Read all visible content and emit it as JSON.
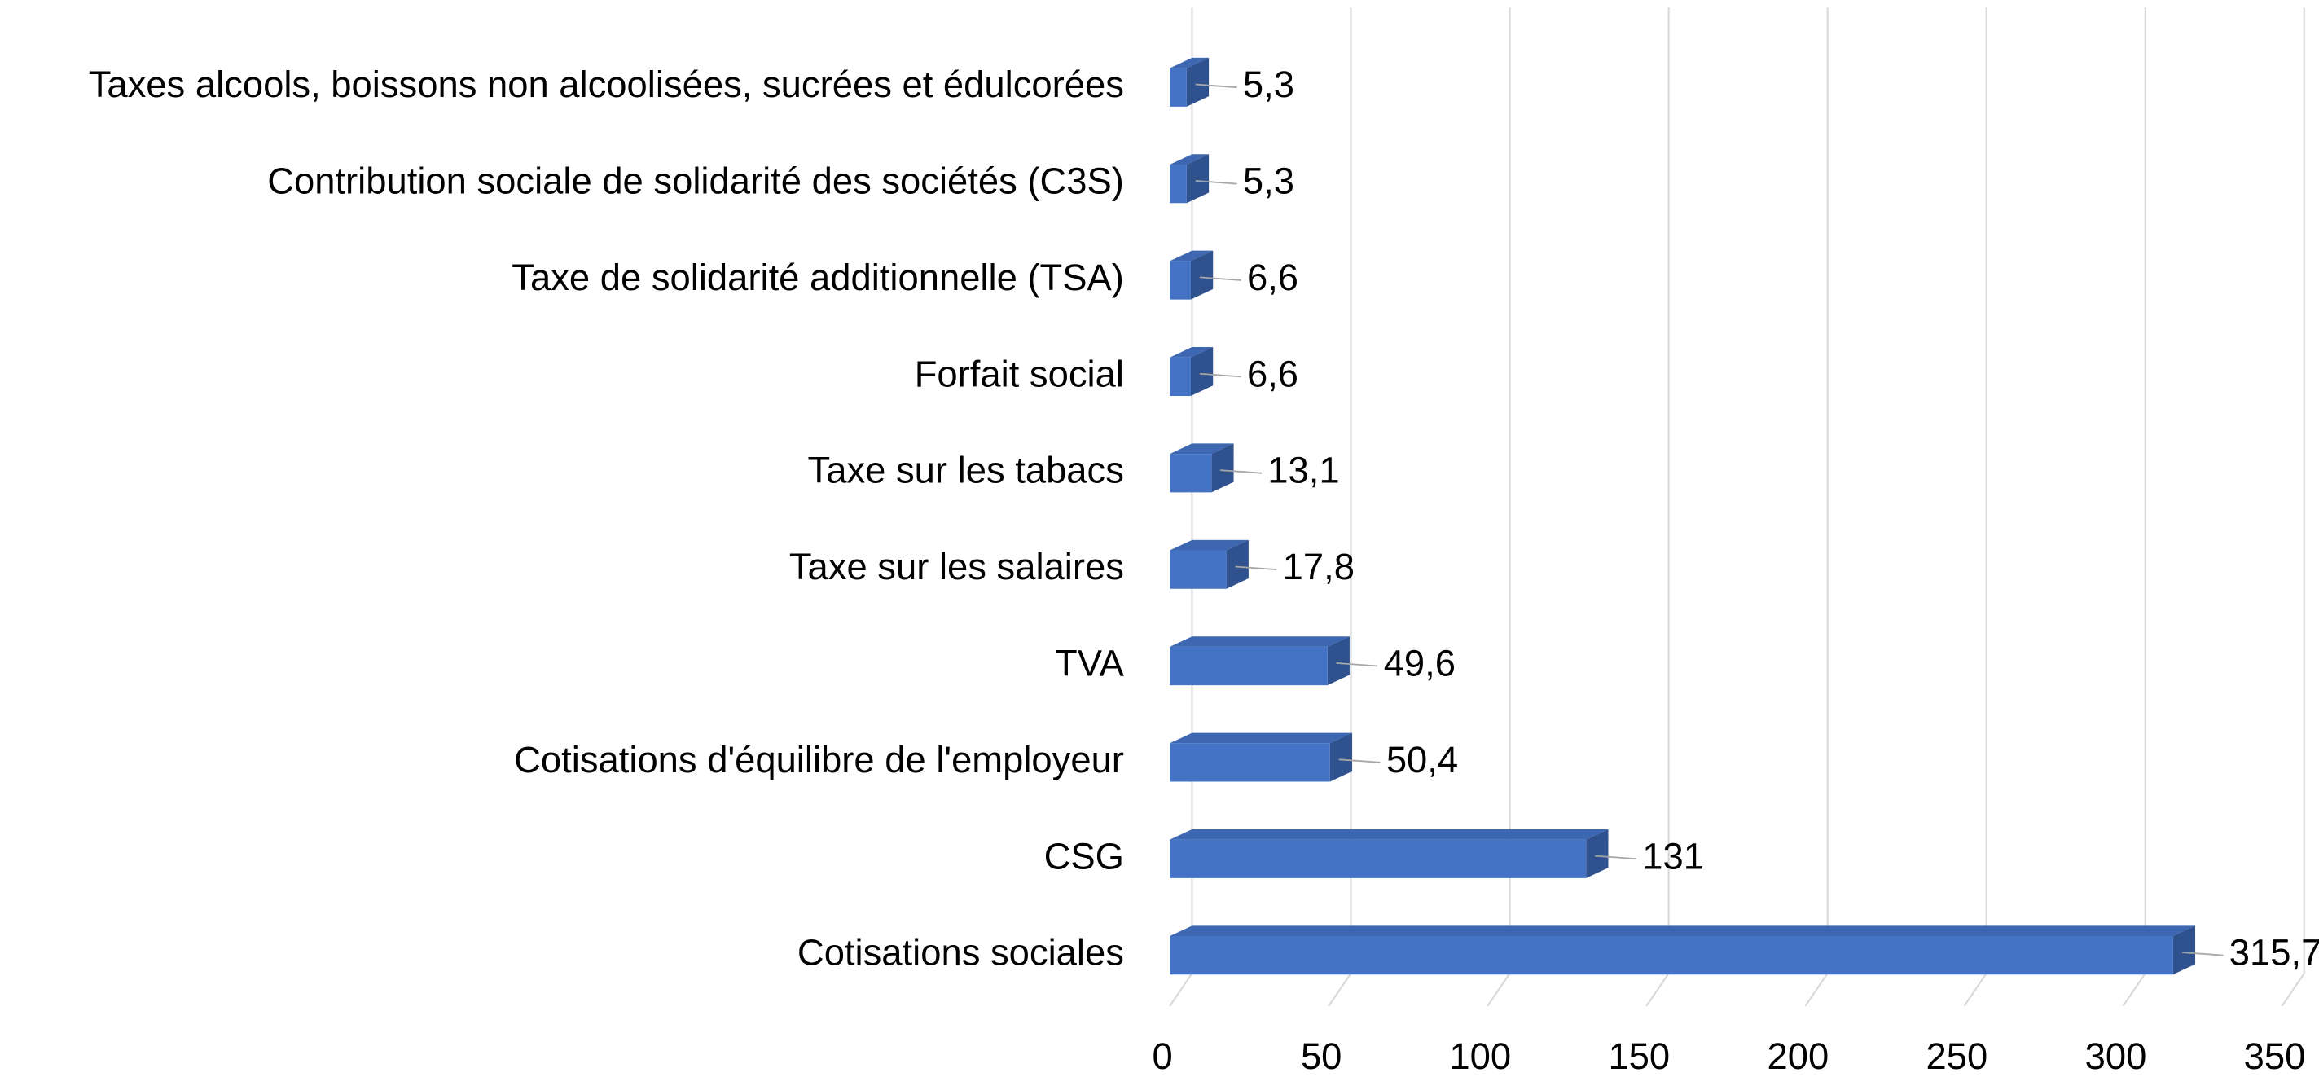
{
  "chart_data": {
    "type": "bar3d_horizontal",
    "categories": [
      "Taxes alcools, boissons non alcoolisées, sucrées et édulcorées",
      "Contribution sociale de solidarité des sociétés (C3S)",
      "Taxe de solidarité additionnelle (TSA)",
      "Forfait social",
      "Taxe sur les tabacs",
      "Taxe sur les salaires",
      "TVA",
      "Cotisations d'équilibre de l'employeur",
      "CSG",
      "Cotisations sociales"
    ],
    "values": [
      5.3,
      5.3,
      6.6,
      6.6,
      13.1,
      17.8,
      49.6,
      50.4,
      131,
      315.7
    ],
    "value_labels": [
      "5,3",
      "5,3",
      "6,6",
      "6,6",
      "13,1",
      "17,8",
      "49,6",
      "50,4",
      "131",
      "315,7"
    ],
    "color": "#4472c4",
    "xlim": [
      0,
      350
    ],
    "xticks": [
      0,
      50,
      100,
      150,
      200,
      250,
      300,
      350
    ],
    "grid": true
  }
}
